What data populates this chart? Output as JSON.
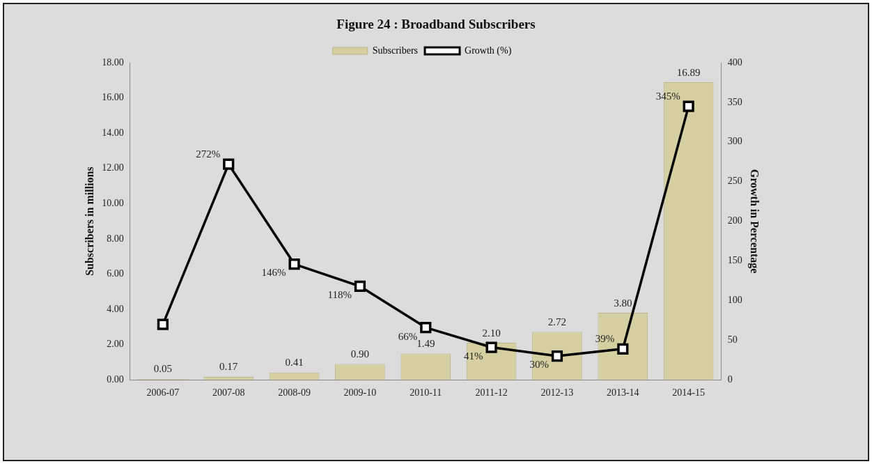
{
  "chart_data": {
    "type": "bar",
    "title": "Figure  24 : Broadband Subscribers",
    "categories": [
      "2006-07",
      "2007-08",
      "2008-09",
      "2009-10",
      "2010-11",
      "2011-12",
      "2012-13",
      "2013-14",
      "2014-15"
    ],
    "series": [
      {
        "name": "Subscribers",
        "color": "#d6cfa2",
        "values": [
          0.05,
          0.17,
          0.41,
          0.9,
          1.49,
          2.1,
          2.72,
          3.8,
          16.89
        ],
        "value_labels": [
          "0.05",
          "0.17",
          "0.41",
          "0.90",
          "1.49",
          "2.10",
          "2.72",
          "3.80",
          "16.89"
        ]
      },
      {
        "name": "Growth (%)",
        "type": "line",
        "axis": "y2",
        "color": "#000000",
        "marker": "square",
        "values": [
          70,
          272,
          146,
          118,
          66,
          41,
          30,
          39,
          345
        ],
        "value_labels": [
          null,
          "272%",
          "146%",
          "118%",
          "66%",
          "41%",
          "30%",
          "39%",
          "345%"
        ]
      }
    ],
    "ylabel": "Subscribers in millions",
    "y2label": "Growth in Percentage",
    "ylim": [
      0,
      18
    ],
    "yticks": [
      {
        "value": 0,
        "label": "0.00"
      },
      {
        "value": 2,
        "label": "2.00"
      },
      {
        "value": 4,
        "label": "4.00"
      },
      {
        "value": 6,
        "label": "6.00"
      },
      {
        "value": 8,
        "label": "8.00"
      },
      {
        "value": 10,
        "label": "10.00"
      },
      {
        "value": 12,
        "label": "12.00"
      },
      {
        "value": 14,
        "label": "14.00"
      },
      {
        "value": 16,
        "label": "16.00"
      },
      {
        "value": 18,
        "label": "18.00"
      }
    ],
    "y2lim": [
      0,
      400
    ],
    "y2ticks": [
      0,
      50,
      100,
      150,
      200,
      250,
      300,
      350,
      400
    ],
    "legend": "top",
    "grid": false
  }
}
